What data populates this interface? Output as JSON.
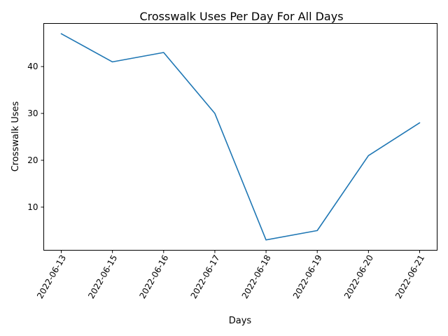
{
  "chart_data": {
    "type": "line",
    "title": "Crosswalk Uses Per Day For All Days",
    "xlabel": "Days",
    "ylabel": "Crosswalk Uses",
    "categories": [
      "2022-06-13",
      "2022-06-15",
      "2022-06-16",
      "2022-06-17",
      "2022-06-18",
      "2022-06-19",
      "2022-06-20",
      "2022-06-21"
    ],
    "series": [
      {
        "values": [
          47,
          41,
          43,
          30,
          3,
          5,
          21,
          28
        ],
        "color": "#1f77b4"
      }
    ],
    "yticks": [
      10,
      20,
      30,
      40
    ],
    "ylim": [
      0.8,
      49.2
    ],
    "x_tick_rotation": "60 degrees",
    "grid": false,
    "legend": "none"
  }
}
